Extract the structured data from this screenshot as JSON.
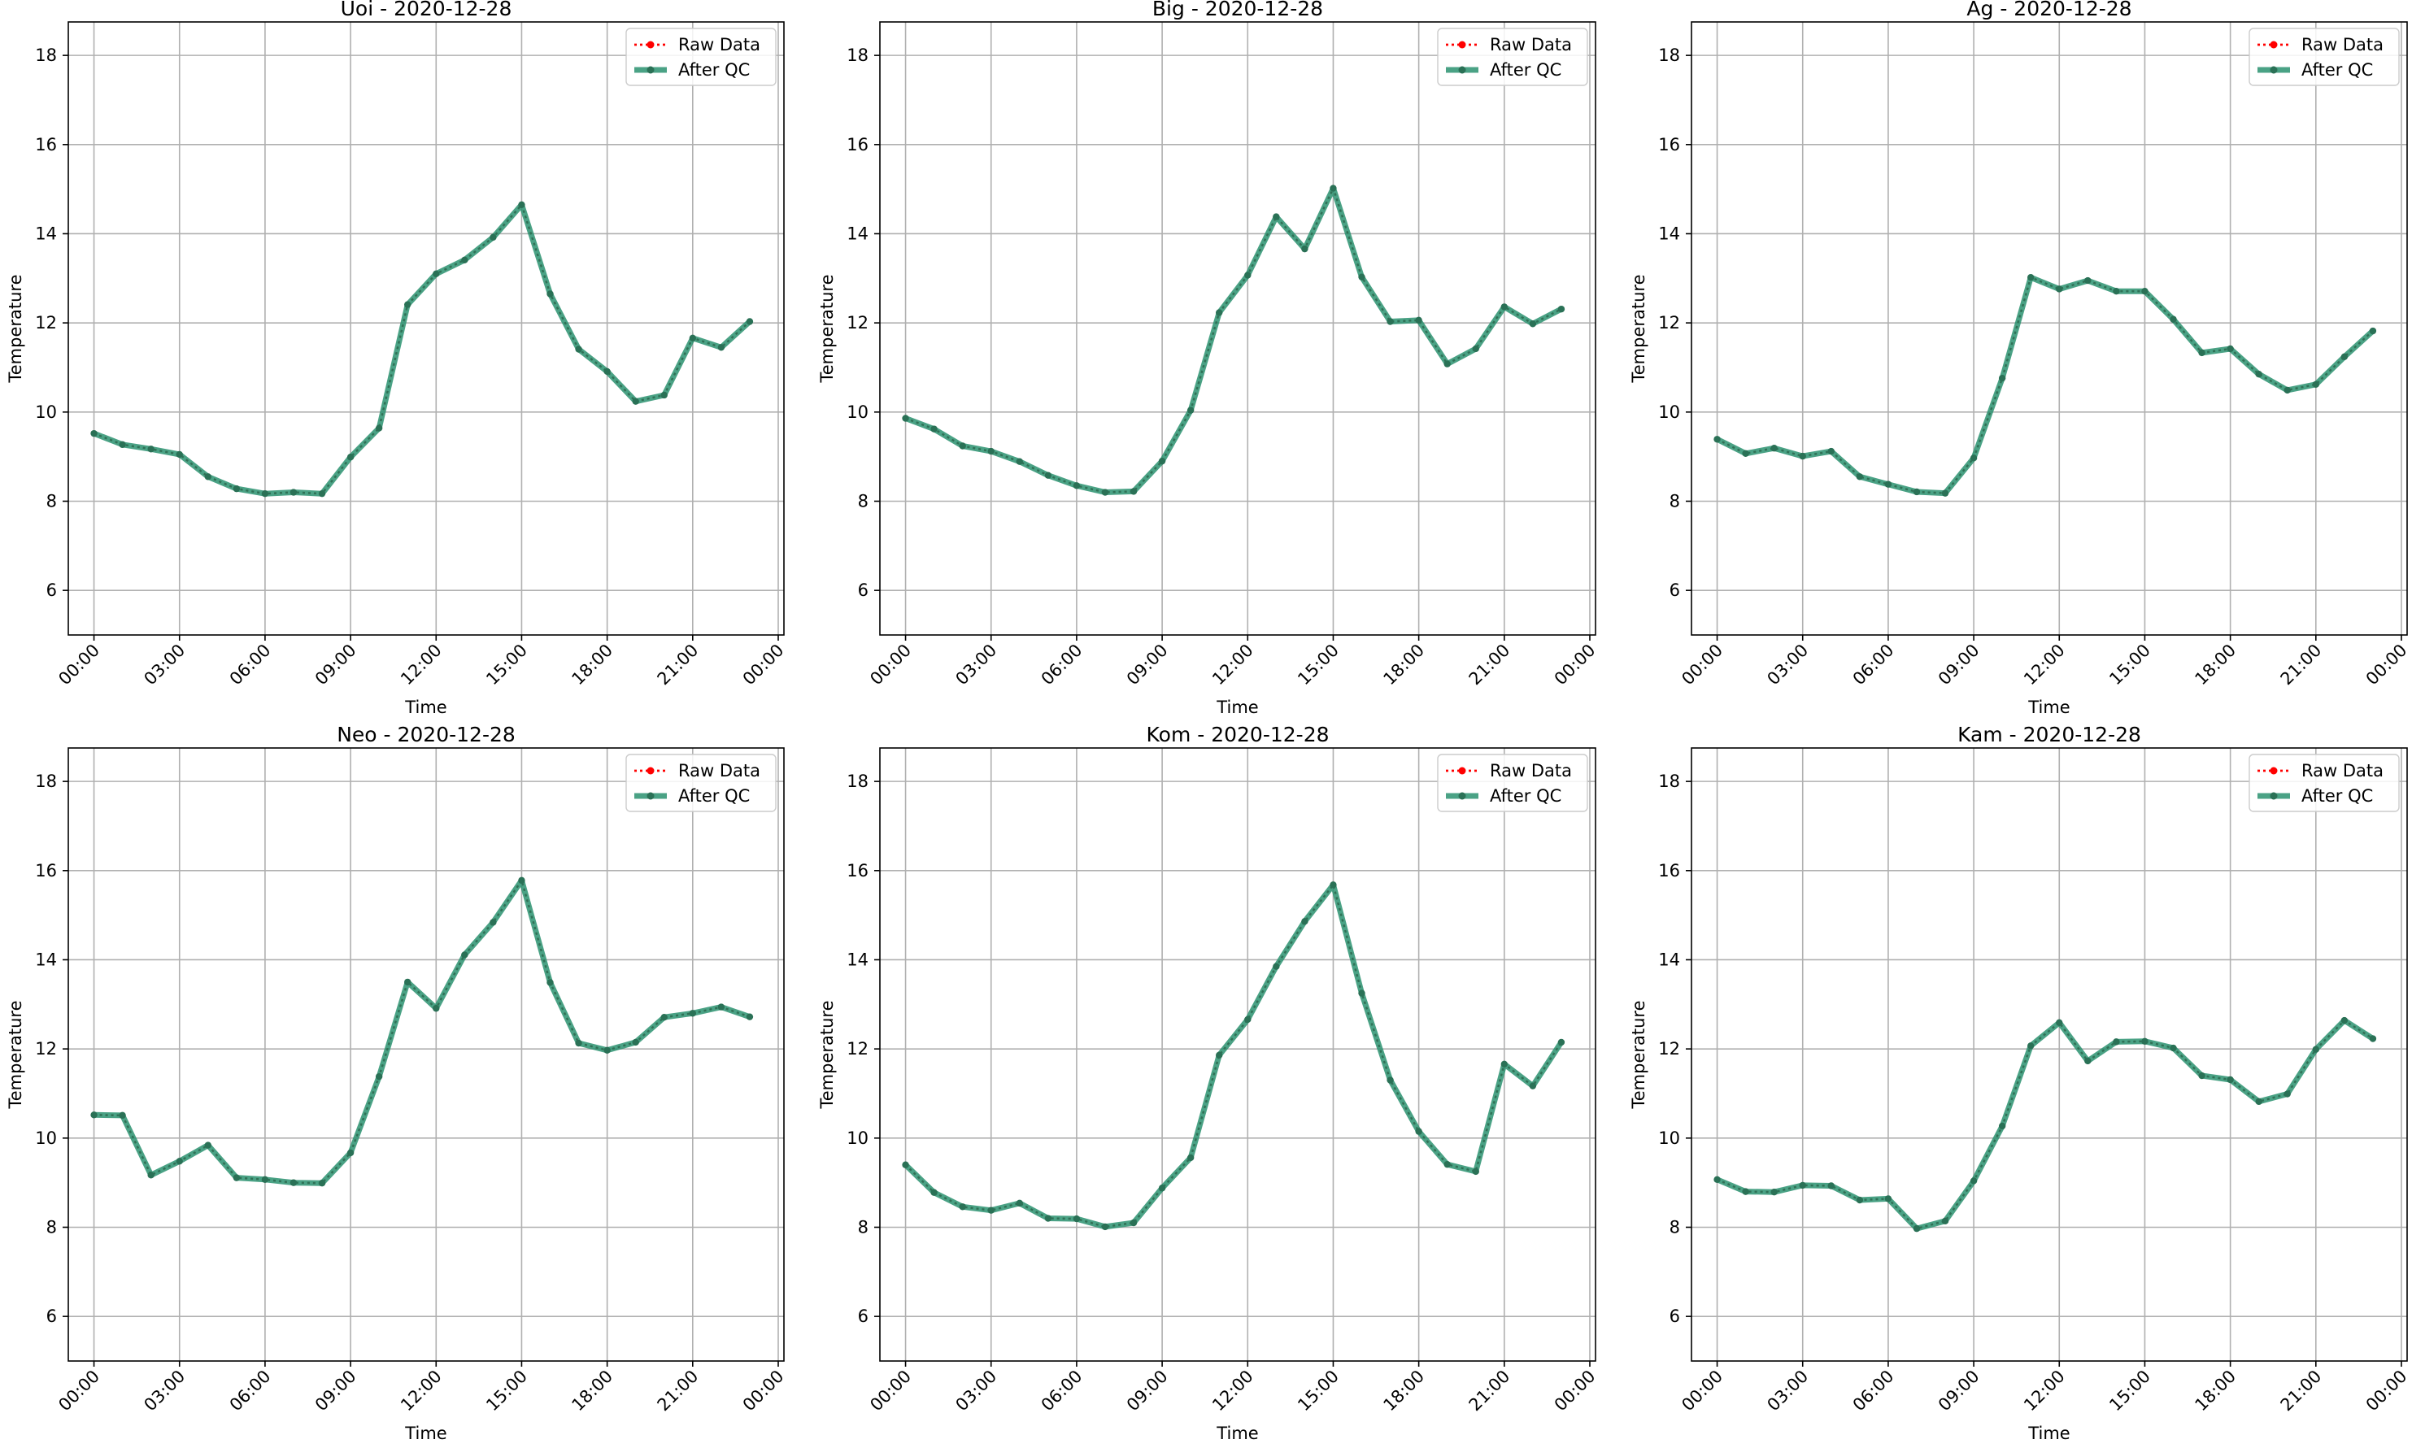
{
  "colors": {
    "raw": "#ff0000",
    "qc": "#2a9270",
    "qc_marker": "#2a7156",
    "grid": "#b0b0b0",
    "axis": "#000000"
  },
  "legend": {
    "raw_label": "Raw Data",
    "qc_label": "After QC"
  },
  "chart_data": [
    {
      "type": "line",
      "title": "Uoi - 2020-12-28",
      "xlabel": "Time",
      "ylabel": "Temperature",
      "legend_position": "top-right",
      "grid": true,
      "xlim": [
        -0.9,
        24.2
      ],
      "ylim": [
        5,
        18.75
      ],
      "x_ticks": [
        0,
        3,
        6,
        9,
        12,
        15,
        18,
        21,
        24
      ],
      "x_tick_labels": [
        "00:00",
        "03:00",
        "06:00",
        "09:00",
        "12:00",
        "15:00",
        "18:00",
        "21:00",
        "00:00"
      ],
      "y_ticks": [
        6,
        8,
        10,
        12,
        14,
        16,
        18
      ],
      "y_tick_labels": [
        "6",
        "8",
        "10",
        "12",
        "14",
        "16",
        "18"
      ],
      "x": [
        "00:00",
        "01:00",
        "02:00",
        "03:00",
        "04:00",
        "05:00",
        "06:00",
        "07:00",
        "08:00",
        "09:00",
        "10:00",
        "11:00",
        "12:00",
        "13:00",
        "14:00",
        "15:00",
        "16:00",
        "17:00",
        "18:00",
        "19:00",
        "20:00",
        "21:00",
        "22:00",
        "23:00"
      ],
      "series": [
        {
          "name": "Raw Data",
          "values": [
            9.52,
            9.27,
            9.17,
            9.05,
            8.55,
            8.28,
            8.17,
            8.2,
            8.17,
            8.99,
            9.64,
            12.41,
            13.1,
            13.41,
            13.92,
            14.65,
            12.65,
            11.41,
            10.91,
            10.24,
            10.38,
            11.66,
            11.45,
            12.03
          ]
        },
        {
          "name": "After QC",
          "values": [
            9.52,
            9.27,
            9.17,
            9.05,
            8.55,
            8.28,
            8.17,
            8.2,
            8.17,
            8.99,
            9.64,
            12.41,
            13.1,
            13.41,
            13.92,
            14.65,
            12.65,
            11.41,
            10.91,
            10.24,
            10.38,
            11.66,
            11.45,
            12.03
          ]
        }
      ]
    },
    {
      "type": "line",
      "title": "Big - 2020-12-28",
      "xlabel": "Time",
      "ylabel": "Temperature",
      "legend_position": "top-right",
      "grid": true,
      "xlim": [
        -0.9,
        24.2
      ],
      "ylim": [
        5,
        18.75
      ],
      "x_ticks": [
        0,
        3,
        6,
        9,
        12,
        15,
        18,
        21,
        24
      ],
      "x_tick_labels": [
        "00:00",
        "03:00",
        "06:00",
        "09:00",
        "12:00",
        "15:00",
        "18:00",
        "21:00",
        "00:00"
      ],
      "y_ticks": [
        6,
        8,
        10,
        12,
        14,
        16,
        18
      ],
      "y_tick_labels": [
        "6",
        "8",
        "10",
        "12",
        "14",
        "16",
        "18"
      ],
      "x": [
        "00:00",
        "01:00",
        "02:00",
        "03:00",
        "04:00",
        "05:00",
        "06:00",
        "07:00",
        "08:00",
        "09:00",
        "10:00",
        "11:00",
        "12:00",
        "13:00",
        "14:00",
        "15:00",
        "16:00",
        "17:00",
        "18:00",
        "19:00",
        "20:00",
        "21:00",
        "22:00",
        "23:00"
      ],
      "series": [
        {
          "name": "Raw Data",
          "values": [
            9.86,
            9.62,
            9.24,
            9.12,
            8.89,
            8.58,
            8.35,
            8.2,
            8.22,
            8.9,
            10.04,
            12.23,
            13.07,
            14.38,
            13.66,
            15.02,
            13.03,
            12.03,
            12.06,
            11.08,
            11.42,
            12.36,
            11.98,
            12.31
          ]
        },
        {
          "name": "After QC",
          "values": [
            9.86,
            9.62,
            9.24,
            9.12,
            8.89,
            8.58,
            8.35,
            8.2,
            8.22,
            8.9,
            10.04,
            12.23,
            13.07,
            14.38,
            13.66,
            15.02,
            13.03,
            12.03,
            12.06,
            11.08,
            11.42,
            12.36,
            11.98,
            12.31
          ]
        }
      ]
    },
    {
      "type": "line",
      "title": "Ag - 2020-12-28",
      "xlabel": "Time",
      "ylabel": "Temperature",
      "legend_position": "top-right",
      "grid": true,
      "xlim": [
        -0.9,
        24.2
      ],
      "ylim": [
        5,
        18.75
      ],
      "x_ticks": [
        0,
        3,
        6,
        9,
        12,
        15,
        18,
        21,
        24
      ],
      "x_tick_labels": [
        "00:00",
        "03:00",
        "06:00",
        "09:00",
        "12:00",
        "15:00",
        "18:00",
        "21:00",
        "00:00"
      ],
      "y_ticks": [
        6,
        8,
        10,
        12,
        14,
        16,
        18
      ],
      "y_tick_labels": [
        "6",
        "8",
        "10",
        "12",
        "14",
        "16",
        "18"
      ],
      "x": [
        "00:00",
        "01:00",
        "02:00",
        "03:00",
        "04:00",
        "05:00",
        "06:00",
        "07:00",
        "08:00",
        "09:00",
        "10:00",
        "11:00",
        "12:00",
        "13:00",
        "14:00",
        "15:00",
        "16:00",
        "17:00",
        "18:00",
        "19:00",
        "20:00",
        "21:00",
        "22:00",
        "23:00"
      ],
      "series": [
        {
          "name": "Raw Data",
          "values": [
            9.39,
            9.07,
            9.19,
            9.01,
            9.12,
            8.55,
            8.38,
            8.21,
            8.18,
            8.97,
            10.76,
            13.02,
            12.76,
            12.95,
            12.71,
            12.71,
            12.08,
            11.33,
            11.42,
            10.85,
            10.49,
            10.62,
            11.24,
            11.82
          ]
        },
        {
          "name": "After QC",
          "values": [
            9.39,
            9.07,
            9.19,
            9.01,
            9.12,
            8.55,
            8.38,
            8.21,
            8.18,
            8.97,
            10.76,
            13.02,
            12.76,
            12.95,
            12.71,
            12.71,
            12.08,
            11.33,
            11.42,
            10.85,
            10.49,
            10.62,
            11.24,
            11.82
          ]
        }
      ]
    },
    {
      "type": "line",
      "title": "Neo - 2020-12-28",
      "xlabel": "Time",
      "ylabel": "Temperature",
      "legend_position": "top-right",
      "grid": true,
      "xlim": [
        -0.9,
        24.2
      ],
      "ylim": [
        5,
        18.75
      ],
      "x_ticks": [
        0,
        3,
        6,
        9,
        12,
        15,
        18,
        21,
        24
      ],
      "x_tick_labels": [
        "00:00",
        "03:00",
        "06:00",
        "09:00",
        "12:00",
        "15:00",
        "18:00",
        "21:00",
        "00:00"
      ],
      "y_ticks": [
        6,
        8,
        10,
        12,
        14,
        16,
        18
      ],
      "y_tick_labels": [
        "6",
        "8",
        "10",
        "12",
        "14",
        "16",
        "18"
      ],
      "x": [
        "00:00",
        "01:00",
        "02:00",
        "03:00",
        "04:00",
        "05:00",
        "06:00",
        "07:00",
        "08:00",
        "09:00",
        "10:00",
        "11:00",
        "12:00",
        "13:00",
        "14:00",
        "15:00",
        "16:00",
        "17:00",
        "18:00",
        "19:00",
        "20:00",
        "21:00",
        "22:00",
        "23:00"
      ],
      "series": [
        {
          "name": "Raw Data",
          "values": [
            10.52,
            10.51,
            9.17,
            9.48,
            9.84,
            9.11,
            9.07,
            9.0,
            8.99,
            9.67,
            11.38,
            13.5,
            12.91,
            14.11,
            14.84,
            15.78,
            13.49,
            12.13,
            11.97,
            12.15,
            12.71,
            12.8,
            12.94,
            12.72
          ]
        },
        {
          "name": "After QC",
          "values": [
            10.52,
            10.51,
            9.17,
            9.48,
            9.84,
            9.11,
            9.07,
            9.0,
            8.99,
            9.67,
            11.38,
            13.5,
            12.91,
            14.11,
            14.84,
            15.78,
            13.49,
            12.13,
            11.97,
            12.15,
            12.71,
            12.8,
            12.94,
            12.72
          ]
        }
      ]
    },
    {
      "type": "line",
      "title": "Kom - 2020-12-28",
      "xlabel": "Time",
      "ylabel": "Temperature",
      "legend_position": "top-right",
      "grid": true,
      "xlim": [
        -0.9,
        24.2
      ],
      "ylim": [
        5,
        18.75
      ],
      "x_ticks": [
        0,
        3,
        6,
        9,
        12,
        15,
        18,
        21,
        24
      ],
      "x_tick_labels": [
        "00:00",
        "03:00",
        "06:00",
        "09:00",
        "12:00",
        "15:00",
        "18:00",
        "21:00",
        "00:00"
      ],
      "y_ticks": [
        6,
        8,
        10,
        12,
        14,
        16,
        18
      ],
      "y_tick_labels": [
        "6",
        "8",
        "10",
        "12",
        "14",
        "16",
        "18"
      ],
      "x": [
        "00:00",
        "01:00",
        "02:00",
        "03:00",
        "04:00",
        "05:00",
        "06:00",
        "07:00",
        "08:00",
        "09:00",
        "10:00",
        "11:00",
        "12:00",
        "13:00",
        "14:00",
        "15:00",
        "16:00",
        "17:00",
        "18:00",
        "19:00",
        "20:00",
        "21:00",
        "22:00",
        "23:00"
      ],
      "series": [
        {
          "name": "Raw Data",
          "values": [
            9.4,
            8.78,
            8.46,
            8.38,
            8.54,
            8.2,
            8.19,
            8.01,
            8.1,
            8.88,
            9.56,
            11.86,
            12.66,
            13.85,
            14.86,
            15.68,
            13.25,
            11.3,
            10.15,
            9.41,
            9.25,
            11.66,
            11.17,
            12.15
          ]
        },
        {
          "name": "After QC",
          "values": [
            9.4,
            8.78,
            8.46,
            8.38,
            8.54,
            8.2,
            8.19,
            8.01,
            8.1,
            8.88,
            9.56,
            11.86,
            12.66,
            13.85,
            14.86,
            15.68,
            13.25,
            11.3,
            10.15,
            9.41,
            9.25,
            11.66,
            11.17,
            12.15
          ]
        }
      ]
    },
    {
      "type": "line",
      "title": "Kam - 2020-12-28",
      "xlabel": "Time",
      "ylabel": "Temperature",
      "legend_position": "top-right",
      "grid": true,
      "xlim": [
        -0.9,
        24.2
      ],
      "ylim": [
        5,
        18.75
      ],
      "x_ticks": [
        0,
        3,
        6,
        9,
        12,
        15,
        18,
        21,
        24
      ],
      "x_tick_labels": [
        "00:00",
        "03:00",
        "06:00",
        "09:00",
        "12:00",
        "15:00",
        "18:00",
        "21:00",
        "00:00"
      ],
      "y_ticks": [
        6,
        8,
        10,
        12,
        14,
        16,
        18
      ],
      "y_tick_labels": [
        "6",
        "8",
        "10",
        "12",
        "14",
        "16",
        "18"
      ],
      "x": [
        "00:00",
        "01:00",
        "02:00",
        "03:00",
        "04:00",
        "05:00",
        "06:00",
        "07:00",
        "08:00",
        "09:00",
        "10:00",
        "11:00",
        "12:00",
        "13:00",
        "14:00",
        "15:00",
        "16:00",
        "17:00",
        "18:00",
        "19:00",
        "20:00",
        "21:00",
        "22:00",
        "23:00"
      ],
      "series": [
        {
          "name": "Raw Data",
          "values": [
            9.07,
            8.8,
            8.79,
            8.94,
            8.93,
            8.61,
            8.64,
            7.97,
            8.14,
            9.04,
            10.27,
            12.07,
            12.59,
            11.73,
            12.16,
            12.17,
            12.02,
            11.4,
            11.31,
            10.82,
            10.99,
            11.99,
            12.64,
            12.23
          ]
        },
        {
          "name": "After QC",
          "values": [
            9.07,
            8.8,
            8.79,
            8.94,
            8.93,
            8.61,
            8.64,
            7.97,
            8.14,
            9.04,
            10.27,
            12.07,
            12.59,
            11.73,
            12.16,
            12.17,
            12.02,
            11.4,
            11.31,
            10.82,
            10.99,
            11.99,
            12.64,
            12.23
          ]
        }
      ]
    }
  ]
}
